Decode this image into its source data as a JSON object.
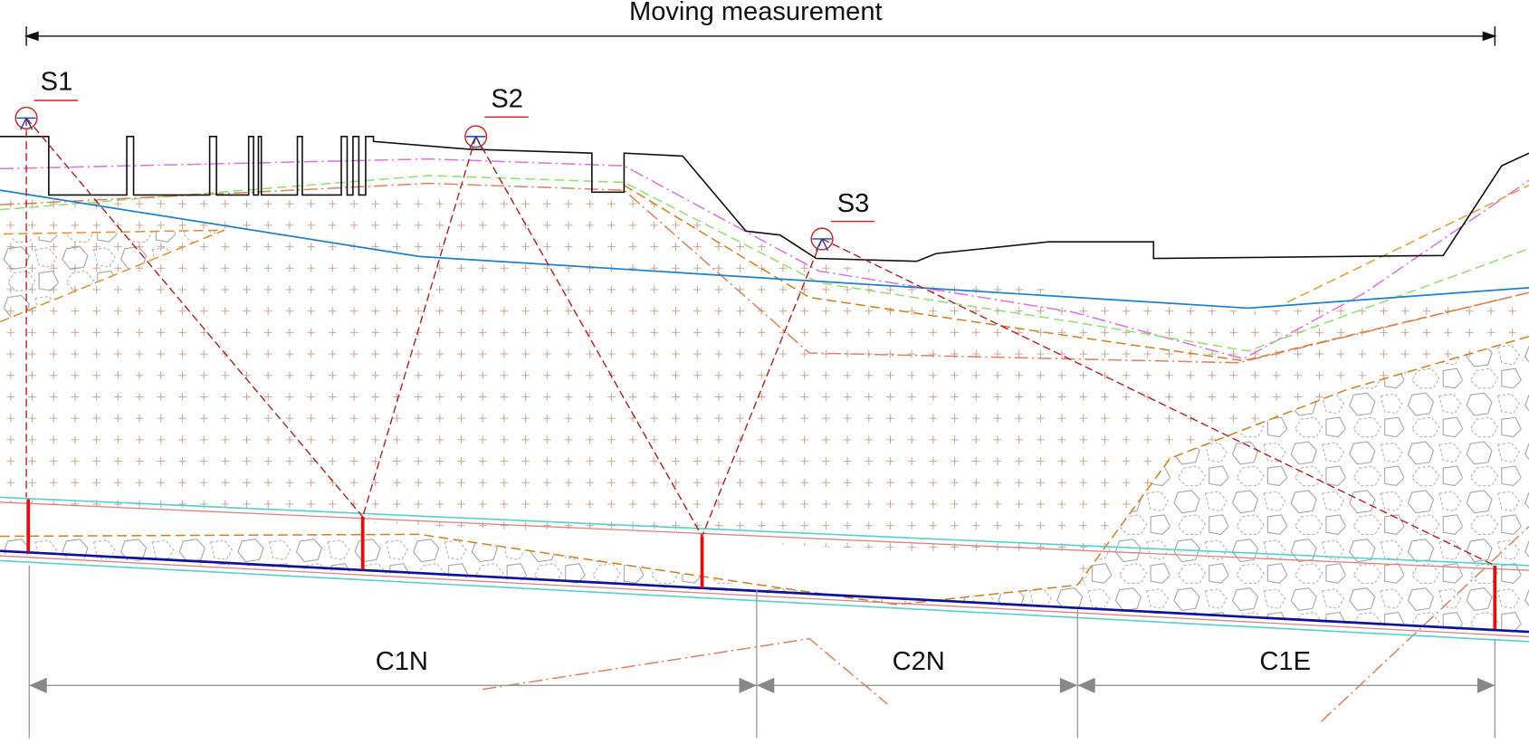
{
  "title": "Moving measurement",
  "stations": [
    {
      "label": "S1"
    },
    {
      "label": "S2"
    },
    {
      "label": "S3"
    }
  ],
  "sections": [
    {
      "label": "C1N"
    },
    {
      "label": "C2N"
    },
    {
      "label": "C1E"
    }
  ]
}
